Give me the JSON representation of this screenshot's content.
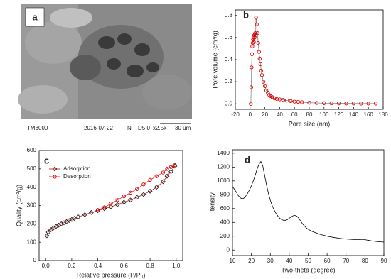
{
  "image_panel": {
    "label": "a",
    "footer": [
      "TM3000",
      "2016-07-22",
      "N",
      "D5.0",
      "x2.5k",
      "30 um"
    ]
  },
  "chart_data": [
    {
      "type": "line",
      "panel_label": "b",
      "xlabel": "Pore size (nm)",
      "ylabel": "Pore volume (cm³/g)",
      "xlim": [
        -20,
        180
      ],
      "xticks": [
        -20,
        0,
        20,
        40,
        60,
        80,
        100,
        120,
        140,
        160,
        180
      ],
      "ylim": [
        -0.05,
        0.85
      ],
      "yticks": [
        {
          "value": 0,
          "label": "0.0"
        },
        0.2,
        0.4,
        0.6,
        0.8
      ],
      "x": [
        1,
        1.5,
        2,
        2.5,
        3,
        3.5,
        4,
        4.5,
        5,
        5.5,
        6,
        6.5,
        7,
        7.5,
        8,
        9,
        10,
        11,
        12,
        13,
        14,
        15,
        16,
        18,
        20,
        22,
        24,
        26,
        28,
        30,
        33,
        36,
        40,
        45,
        50,
        55,
        60,
        65,
        70,
        80,
        90,
        100,
        110,
        120,
        130,
        140,
        150,
        160,
        170
      ],
      "series": [
        {
          "color": "#e00000",
          "line_color": "#777777",
          "marker": "circle",
          "values": [
            0.0,
            0.15,
            0.33,
            0.45,
            0.52,
            0.55,
            0.58,
            0.6,
            0.56,
            0.62,
            0.6,
            0.63,
            0.64,
            0.62,
            0.78,
            0.72,
            0.64,
            0.55,
            0.47,
            0.41,
            0.36,
            0.3,
            0.26,
            0.2,
            0.16,
            0.12,
            0.1,
            0.08,
            0.07,
            0.06,
            0.05,
            0.045,
            0.04,
            0.035,
            0.03,
            0.025,
            0.02,
            0.018,
            0.015,
            0.01,
            0.008,
            0.006,
            0.005,
            0.004,
            0.003,
            0.003,
            0.002,
            0.002,
            0.002
          ]
        }
      ]
    },
    {
      "type": "line",
      "panel_label": "c",
      "xlabel": "Relative pressure (P/P₀)",
      "ylabel": "Quality (cm³/g)",
      "xlim": [
        -0.05,
        1.05
      ],
      "xticks": [
        {
          "value": 0,
          "label": "0.0"
        },
        0.2,
        0.4,
        0.6,
        0.8,
        {
          "value": 1,
          "label": "1.0"
        }
      ],
      "ylim": [
        0,
        600
      ],
      "yticks": [
        0,
        100,
        200,
        300,
        400,
        500,
        600
      ],
      "legend": "upper left",
      "series": [
        {
          "name": "Adsorption",
          "color": "#222222",
          "line_color": "#cc0000",
          "marker": "diamond",
          "x": [
            0.01,
            0.02,
            0.04,
            0.06,
            0.08,
            0.1,
            0.12,
            0.14,
            0.16,
            0.18,
            0.2,
            0.22,
            0.25,
            0.3,
            0.35,
            0.4,
            0.45,
            0.5,
            0.55,
            0.6,
            0.65,
            0.7,
            0.75,
            0.8,
            0.85,
            0.9,
            0.93,
            0.96,
            0.99
          ],
          "values": [
            135,
            155,
            168,
            178,
            186,
            193,
            200,
            206,
            212,
            218,
            224,
            230,
            238,
            250,
            262,
            272,
            283,
            293,
            305,
            318,
            330,
            345,
            360,
            378,
            400,
            430,
            460,
            485,
            515
          ]
        },
        {
          "name": "Desorption",
          "color": "#e00000",
          "line_color": "#e00000",
          "marker": "circle",
          "x": [
            0.99,
            0.96,
            0.93,
            0.9,
            0.85,
            0.8,
            0.75,
            0.7,
            0.65,
            0.6,
            0.55,
            0.5,
            0.45,
            0.4
          ],
          "values": [
            520,
            510,
            500,
            480,
            460,
            440,
            415,
            390,
            370,
            350,
            330,
            310,
            290,
            275
          ]
        }
      ]
    },
    {
      "type": "line",
      "panel_label": "d",
      "xlabel": "Two-theta (degree)",
      "ylabel": "Itensity",
      "xlim": [
        10,
        90
      ],
      "xticks": [
        10,
        20,
        30,
        40,
        50,
        60,
        70,
        80,
        90
      ],
      "ylim": [
        -80,
        1450
      ],
      "yticks": [
        0,
        200,
        400,
        600,
        800,
        1000,
        1200,
        1400
      ],
      "x": [
        10,
        11,
        12,
        13,
        14,
        15,
        16,
        17,
        18,
        19,
        20,
        21,
        22,
        23,
        24,
        25,
        26,
        27,
        28,
        29,
        30,
        31,
        32,
        33,
        34,
        35,
        36,
        37,
        38,
        39,
        40,
        41,
        42,
        43,
        44,
        45,
        46,
        47,
        48,
        49,
        50,
        51,
        52,
        53,
        54,
        55,
        56,
        57,
        58,
        59,
        60,
        61,
        62,
        63,
        64,
        65,
        66,
        67,
        68,
        69,
        70,
        71,
        72,
        73,
        74,
        75,
        76,
        77,
        78,
        79,
        80,
        81,
        82,
        83,
        84,
        85,
        86,
        87,
        88,
        89,
        90
      ],
      "series": [
        {
          "color": "#000000",
          "line_color": "#000000",
          "values": [
            920,
            880,
            840,
            790,
            760,
            740,
            750,
            780,
            820,
            870,
            930,
            1000,
            1080,
            1170,
            1240,
            1280,
            1220,
            1080,
            940,
            820,
            720,
            640,
            580,
            530,
            490,
            460,
            440,
            430,
            430,
            440,
            460,
            480,
            495,
            500,
            490,
            460,
            420,
            380,
            350,
            320,
            300,
            285,
            270,
            260,
            250,
            240,
            230,
            222,
            215,
            208,
            200,
            195,
            190,
            185,
            180,
            176,
            172,
            168,
            165,
            162,
            160,
            158,
            156,
            154,
            152,
            150,
            150,
            150,
            152,
            155,
            150,
            145,
            140,
            135,
            130,
            128,
            125,
            122,
            120,
            118,
            115
          ]
        }
      ]
    }
  ]
}
